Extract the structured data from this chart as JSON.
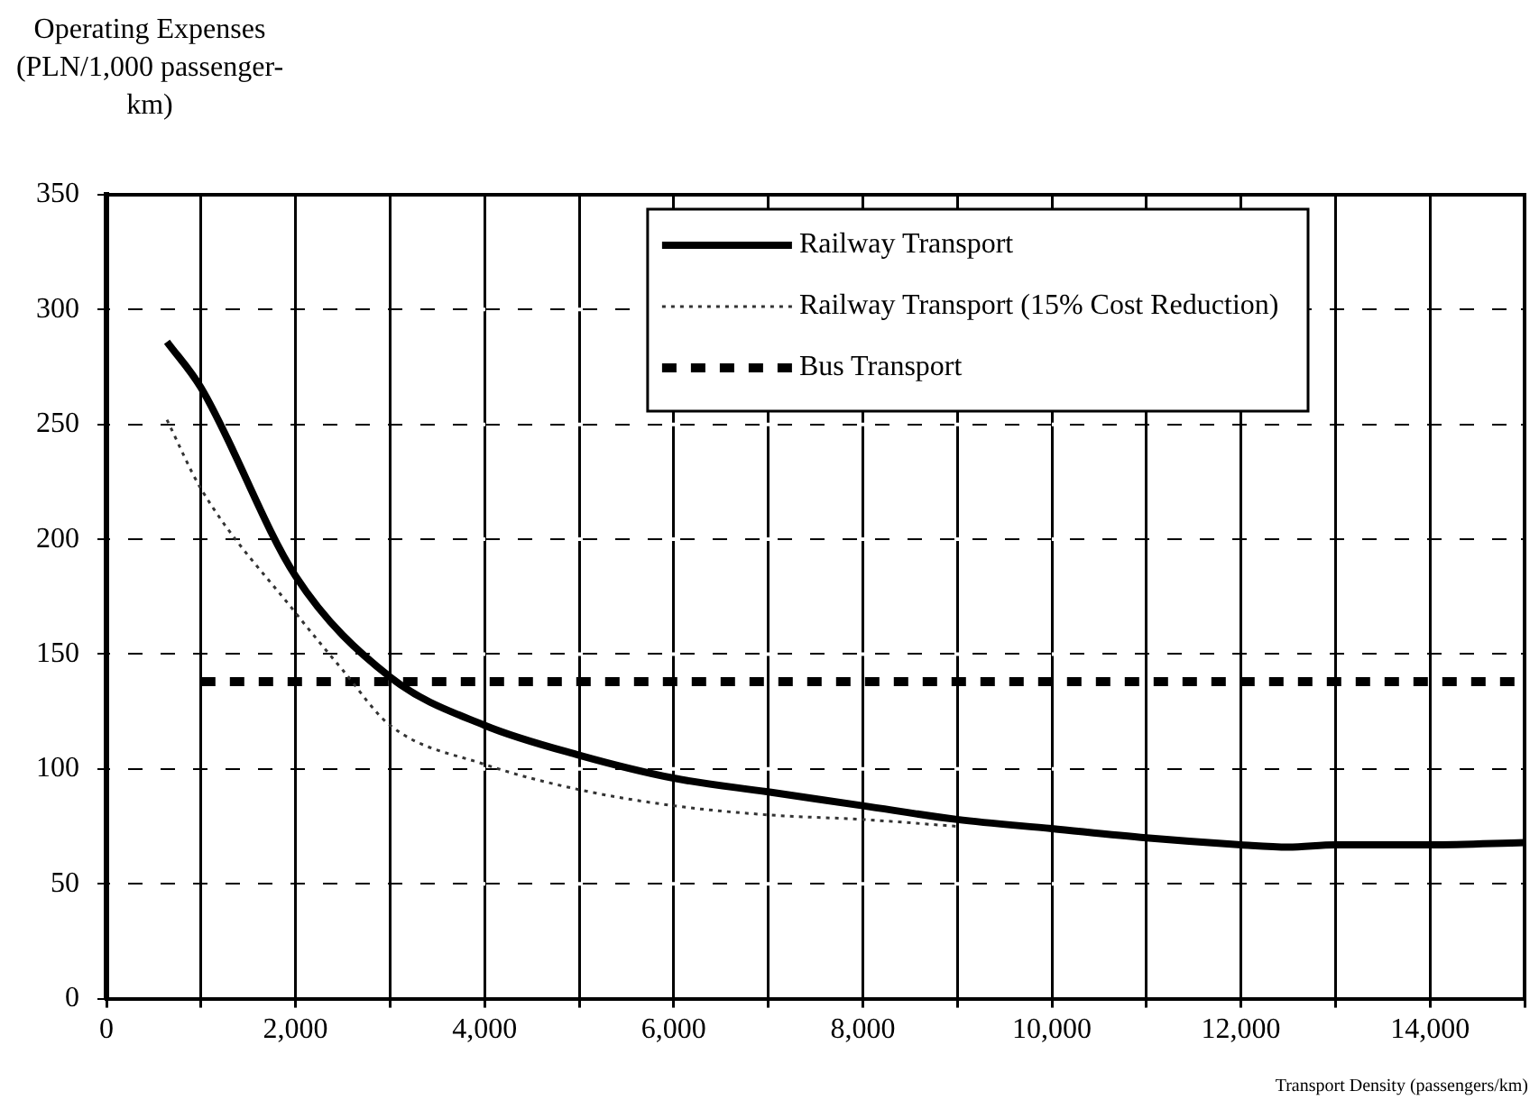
{
  "chart_data": {
    "type": "line",
    "ylabel": "Operating Expenses (PLN/1,000 passenger-km)",
    "xlabel": "Transport Density (passengers/km)",
    "xlim": [
      0,
      15000
    ],
    "ylim": [
      0,
      350
    ],
    "xticks": [
      0,
      {
        "value": 1000,
        "label": null
      },
      {
        "value": 2000,
        "label": "2,000"
      },
      {
        "value": 3000,
        "label": null
      },
      {
        "value": 4000,
        "label": "4,000"
      },
      {
        "value": 5000,
        "label": null
      },
      {
        "value": 6000,
        "label": "6,000"
      },
      {
        "value": 7000,
        "label": null
      },
      {
        "value": 8000,
        "label": "8,000"
      },
      {
        "value": 9000,
        "label": null
      },
      {
        "value": 10000,
        "label": "10,000"
      },
      {
        "value": 11000,
        "label": null
      },
      {
        "value": 12000,
        "label": "12,000"
      },
      {
        "value": 13000,
        "label": null
      },
      {
        "value": 14000,
        "label": "14,000"
      },
      {
        "value": 15000,
        "label": null
      }
    ],
    "yticks": [
      0,
      50,
      100,
      150,
      200,
      250,
      300,
      350
    ],
    "grid": true,
    "legend": "top right",
    "marker": "none",
    "series": [
      {
        "name": "Railway Transport",
        "color": "#000000",
        "line_style": "solid",
        "x": [
          640,
          1000,
          2000,
          3000,
          4000,
          5000,
          6000,
          7000,
          8000,
          9000,
          10000,
          11000,
          12000,
          12500,
          13000,
          14000,
          15000
        ],
        "values": [
          286,
          266,
          184,
          140,
          119,
          106,
          96,
          90,
          84,
          78,
          74,
          70,
          67,
          66,
          67,
          67,
          68
        ]
      },
      {
        "name": "Railway Transport (15% Cost Reduction)",
        "color": "#333333",
        "line_style": "dotted",
        "x": [
          640,
          1000,
          2000,
          2500,
          3000,
          4000,
          5000,
          6000,
          7000,
          8000,
          9000
        ],
        "values": [
          252,
          222,
          168,
          143,
          119,
          102,
          91,
          84,
          80,
          78,
          75
        ]
      },
      {
        "name": "Bus Transport",
        "color": "#000000",
        "line_style": "dashed",
        "x": [
          1000,
          15000
        ],
        "values": [
          138,
          138
        ]
      }
    ]
  }
}
